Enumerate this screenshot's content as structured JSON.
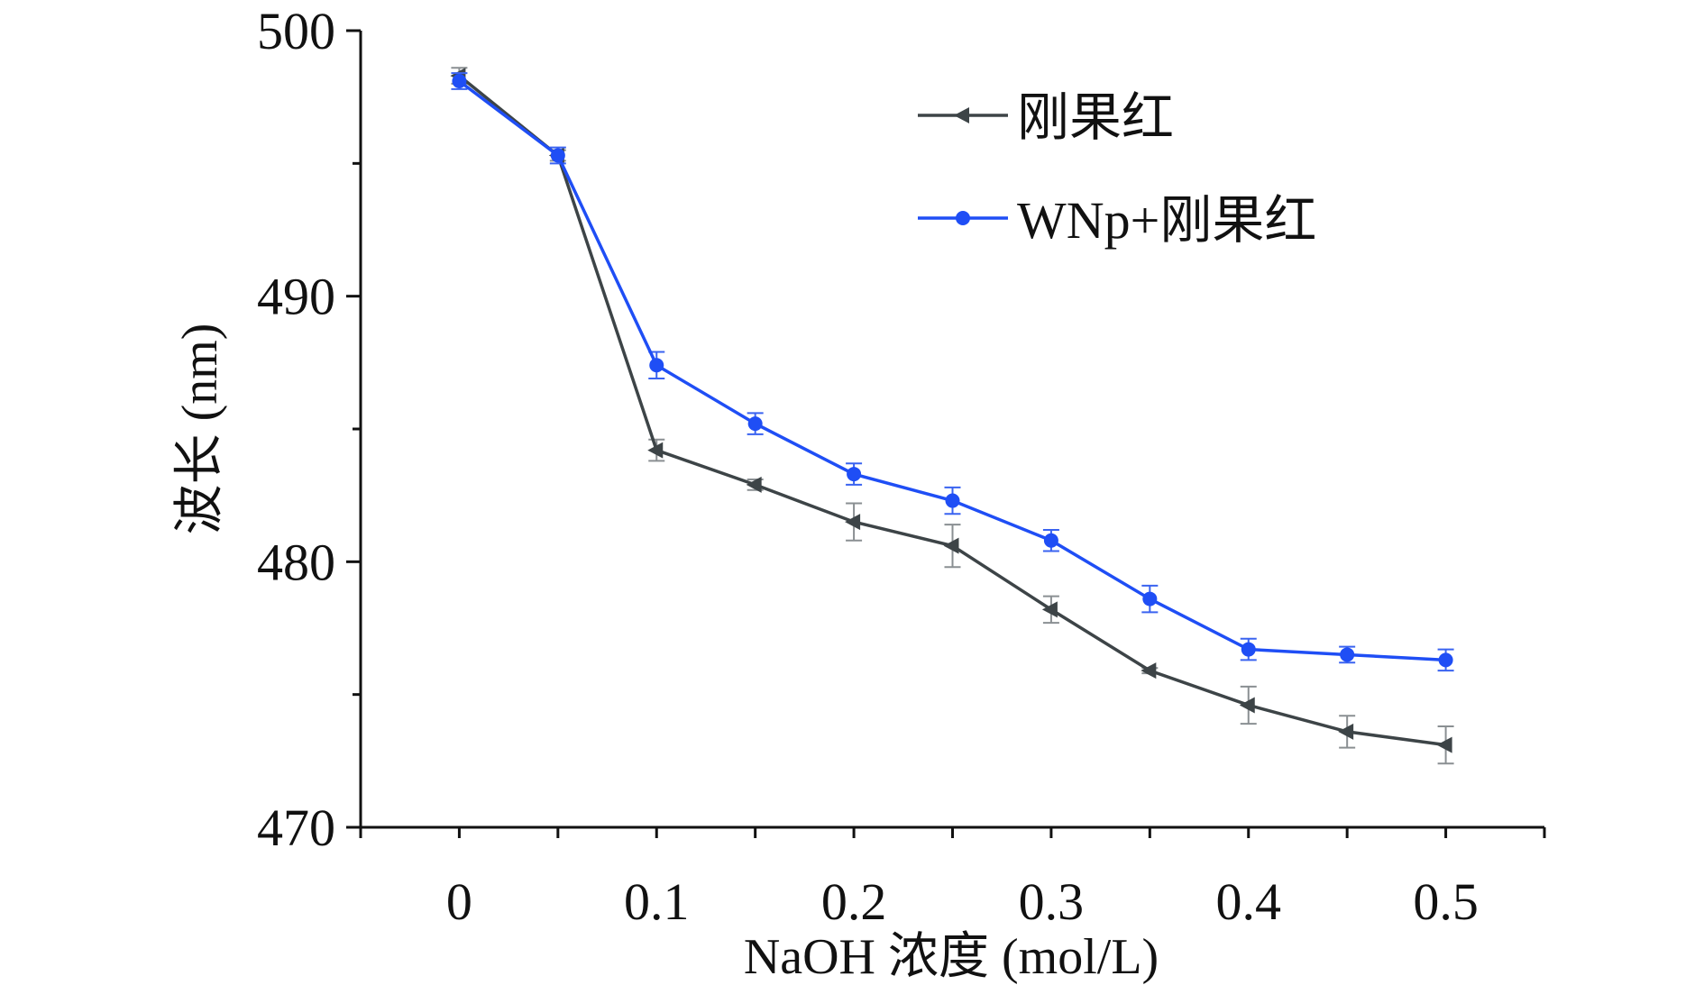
{
  "chart_data": {
    "type": "line",
    "title": "",
    "xlabel": "NaOH 浓度 (mol/L)",
    "ylabel": "波长 (nm)",
    "xlim": [
      -0.05,
      0.55
    ],
    "ylim": [
      470,
      500
    ],
    "x": [
      0,
      0.05,
      0.1,
      0.15,
      0.2,
      0.25,
      0.3,
      0.35,
      0.4,
      0.45,
      0.5
    ],
    "x_ticks": [
      "0",
      "0.1",
      "0.2",
      "0.3",
      "0.4",
      "0.5"
    ],
    "y_ticks": [
      "470",
      "480",
      "490",
      "500"
    ],
    "grid": false,
    "legend_position": "top-right",
    "series": [
      {
        "name": "刚果红",
        "color": "#3d4447",
        "marker": "left-triangle",
        "values": [
          498.3,
          495.3,
          484.2,
          482.9,
          481.5,
          480.6,
          478.2,
          475.9,
          474.6,
          473.6,
          473.1
        ],
        "errors": [
          0.3,
          0.2,
          0.4,
          0.2,
          0.7,
          0.8,
          0.5,
          0.1,
          0.7,
          0.6,
          0.7
        ]
      },
      {
        "name": "WNp+刚果红",
        "color": "#1f4ef5",
        "marker": "circle",
        "values": [
          498.1,
          495.3,
          487.4,
          485.2,
          483.3,
          482.3,
          480.8,
          478.6,
          476.7,
          476.5,
          476.3
        ],
        "errors": [
          0.3,
          0.3,
          0.5,
          0.4,
          0.4,
          0.5,
          0.4,
          0.5,
          0.4,
          0.3,
          0.4
        ]
      }
    ]
  }
}
